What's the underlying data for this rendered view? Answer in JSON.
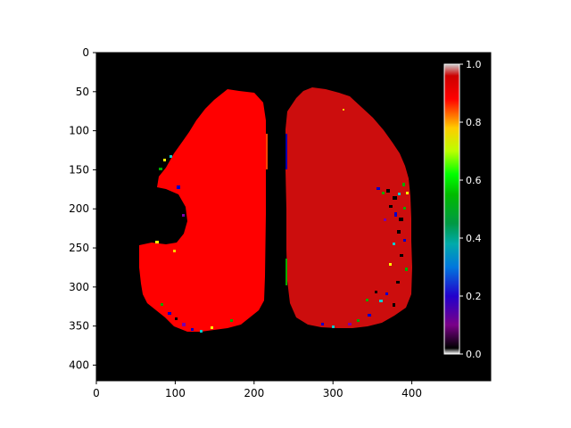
{
  "image": {
    "description": "Segmentation map of two lung regions rendered with nipy_spectral-like colormap on black background",
    "x_axis": {
      "ticks": [
        "0",
        "100",
        "200",
        "300",
        "400"
      ],
      "tick_values": [
        0,
        100,
        200,
        300,
        400
      ],
      "range": [
        0,
        500
      ]
    },
    "y_axis": {
      "ticks": [
        "0",
        "50",
        "100",
        "150",
        "200",
        "250",
        "300",
        "350",
        "400"
      ],
      "tick_values": [
        0,
        50,
        100,
        150,
        200,
        250,
        300,
        350,
        400
      ],
      "range": [
        420,
        0
      ]
    },
    "colorbar": {
      "ticks": [
        "0.0",
        "0.2",
        "0.4",
        "0.6",
        "0.8",
        "1.0"
      ],
      "tick_values": [
        0.0,
        0.2,
        0.4,
        0.6,
        0.8,
        1.0
      ],
      "range": [
        0.0,
        1.0
      ],
      "colors": [
        "#000000",
        "#7a0088",
        "#2200cc",
        "#0066dd",
        "#00aaaa",
        "#00aa66",
        "#00cc00",
        "#44ff00",
        "#ccff00",
        "#ffcc00",
        "#ff6600",
        "#ff0000",
        "#cc0000",
        "#cccccc"
      ]
    },
    "colors": {
      "background": "#000000",
      "left_lung": "#ff0000",
      "right_lung": "#cc0d0d",
      "speckle": [
        "#0000cc",
        "#00aa00",
        "#ffff00",
        "#00cccc",
        "#7a00aa"
      ]
    }
  }
}
